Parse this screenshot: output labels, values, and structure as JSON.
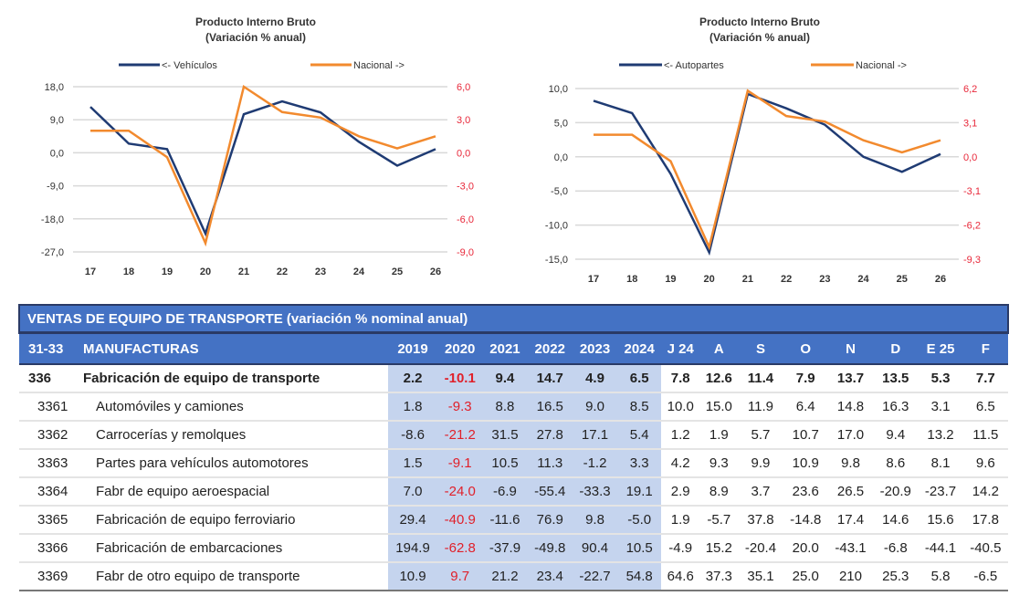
{
  "chart_data": [
    {
      "type": "line",
      "title": "Producto Interno Bruto",
      "subtitle": "(Variación % anual)",
      "x": [
        "17",
        "18",
        "19",
        "20",
        "21",
        "22",
        "23",
        "24",
        "25",
        "26"
      ],
      "y_left": {
        "ticks": [
          "18,0",
          "9,0",
          "0,0",
          "-9,0",
          "-18,0",
          "-27,0"
        ],
        "range": [
          -27,
          18
        ]
      },
      "y_right": {
        "ticks": [
          "6,0",
          "3,0",
          "0,0",
          "-3,0",
          "-6,0",
          "-9,0"
        ],
        "range": [
          -9,
          6
        ]
      },
      "grid": true,
      "legend_position": "top",
      "series": [
        {
          "name": "<- Vehículos",
          "axis": "left",
          "color": "#1f3b73",
          "values": [
            12.5,
            2.5,
            1.0,
            -22.0,
            10.5,
            14.0,
            11.0,
            3.0,
            -3.5,
            1.0
          ]
        },
        {
          "name": "Nacional ->",
          "axis": "right",
          "color": "#f28a2e",
          "values": [
            2.0,
            2.0,
            -0.4,
            -8.2,
            6.0,
            3.7,
            3.2,
            1.5,
            0.4,
            1.5
          ]
        }
      ]
    },
    {
      "type": "line",
      "title": "Producto Interno Bruto",
      "subtitle": "(Variación % anual)",
      "x": [
        "17",
        "18",
        "19",
        "20",
        "21",
        "22",
        "23",
        "24",
        "25",
        "26"
      ],
      "y_left": {
        "ticks": [
          "10,0",
          "5,0",
          "0,0",
          "-5,0",
          "-10,0",
          "-15,0"
        ],
        "range": [
          -15,
          10
        ]
      },
      "y_right": {
        "ticks": [
          "6,2",
          "3,1",
          "0,0",
          "-3,1",
          "-6,2",
          "-9,3"
        ],
        "range": [
          -9.3,
          6.2
        ]
      },
      "grid": true,
      "legend_position": "top",
      "series": [
        {
          "name": "<- Autopartes",
          "axis": "left",
          "color": "#1f3b73",
          "values": [
            8.2,
            6.4,
            -2.5,
            -14.0,
            9.2,
            7.1,
            4.7,
            0.0,
            -2.2,
            0.4
          ]
        },
        {
          "name": "Nacional ->",
          "axis": "right",
          "color": "#f28a2e",
          "values": [
            2.0,
            2.0,
            -0.4,
            -8.2,
            6.0,
            3.7,
            3.2,
            1.5,
            0.4,
            1.5
          ]
        }
      ]
    }
  ],
  "colors": {
    "right_axis": "#e8283a",
    "header": "#4472c4",
    "shade": "#c5d4ee",
    "negative": "#e0202a"
  },
  "table": {
    "title": "VENTAS DE EQUIPO DE TRANSPORTE (variación % nominal anual)",
    "header": {
      "code": "31-33",
      "name": "MANUFACTURAS",
      "cols": [
        "2019",
        "2020",
        "2021",
        "2022",
        "2023",
        "2024",
        "J 24",
        "A",
        "S",
        "O",
        "N",
        "D",
        "E 25",
        "F"
      ]
    },
    "rows": [
      {
        "code": "336",
        "name": "Fabricación de equipo de transporte",
        "values": [
          "2.2",
          "-10.1",
          "9.4",
          "14.7",
          "4.9",
          "6.5",
          "7.8",
          "12.6",
          "11.4",
          "7.9",
          "13.7",
          "13.5",
          "5.3",
          "7.7"
        ]
      },
      {
        "code": "3361",
        "name": "Automóviles y camiones",
        "values": [
          "1.8",
          "-9.3",
          "8.8",
          "16.5",
          "9.0",
          "8.5",
          "10.0",
          "15.0",
          "11.9",
          "6.4",
          "14.8",
          "16.3",
          "3.1",
          "6.5"
        ]
      },
      {
        "code": "3362",
        "name": "Carrocerías y remolques",
        "values": [
          "-8.6",
          "-21.2",
          "31.5",
          "27.8",
          "17.1",
          "5.4",
          "1.2",
          "1.9",
          "5.7",
          "10.7",
          "17.0",
          "9.4",
          "13.2",
          "11.5"
        ]
      },
      {
        "code": "3363",
        "name": "Partes para vehículos automotores",
        "values": [
          "1.5",
          "-9.1",
          "10.5",
          "11.3",
          "-1.2",
          "3.3",
          "4.2",
          "9.3",
          "9.9",
          "10.9",
          "9.8",
          "8.6",
          "8.1",
          "9.6"
        ]
      },
      {
        "code": "3364",
        "name": "Fabr de equipo aeroespacial",
        "values": [
          "7.0",
          "-24.0",
          "-6.9",
          "-55.4",
          "-33.3",
          "19.1",
          "2.9",
          "8.9",
          "3.7",
          "23.6",
          "26.5",
          "-20.9",
          "-23.7",
          "14.2"
        ]
      },
      {
        "code": "3365",
        "name": "Fabricación de equipo ferroviario",
        "values": [
          "29.4",
          "-40.9",
          "-11.6",
          "76.9",
          "9.8",
          "-5.0",
          "1.9",
          "-5.7",
          "37.8",
          "-14.8",
          "17.4",
          "14.6",
          "15.6",
          "17.8"
        ]
      },
      {
        "code": "3366",
        "name": "Fabricación de embarcaciones",
        "values": [
          "194.9",
          "-62.8",
          "-37.9",
          "-49.8",
          "90.4",
          "10.5",
          "-4.9",
          "15.2",
          "-20.4",
          "20.0",
          "-43.1",
          "-6.8",
          "-44.1",
          "-40.5"
        ]
      },
      {
        "code": "3369",
        "name": "Fabr de otro equipo de transporte",
        "values": [
          "10.9",
          "9.7",
          "21.2",
          "23.4",
          "-22.7",
          "54.8",
          "64.6",
          "37.3",
          "35.1",
          "25.0",
          "210",
          "25.3",
          "5.8",
          "-6.5"
        ]
      }
    ]
  }
}
